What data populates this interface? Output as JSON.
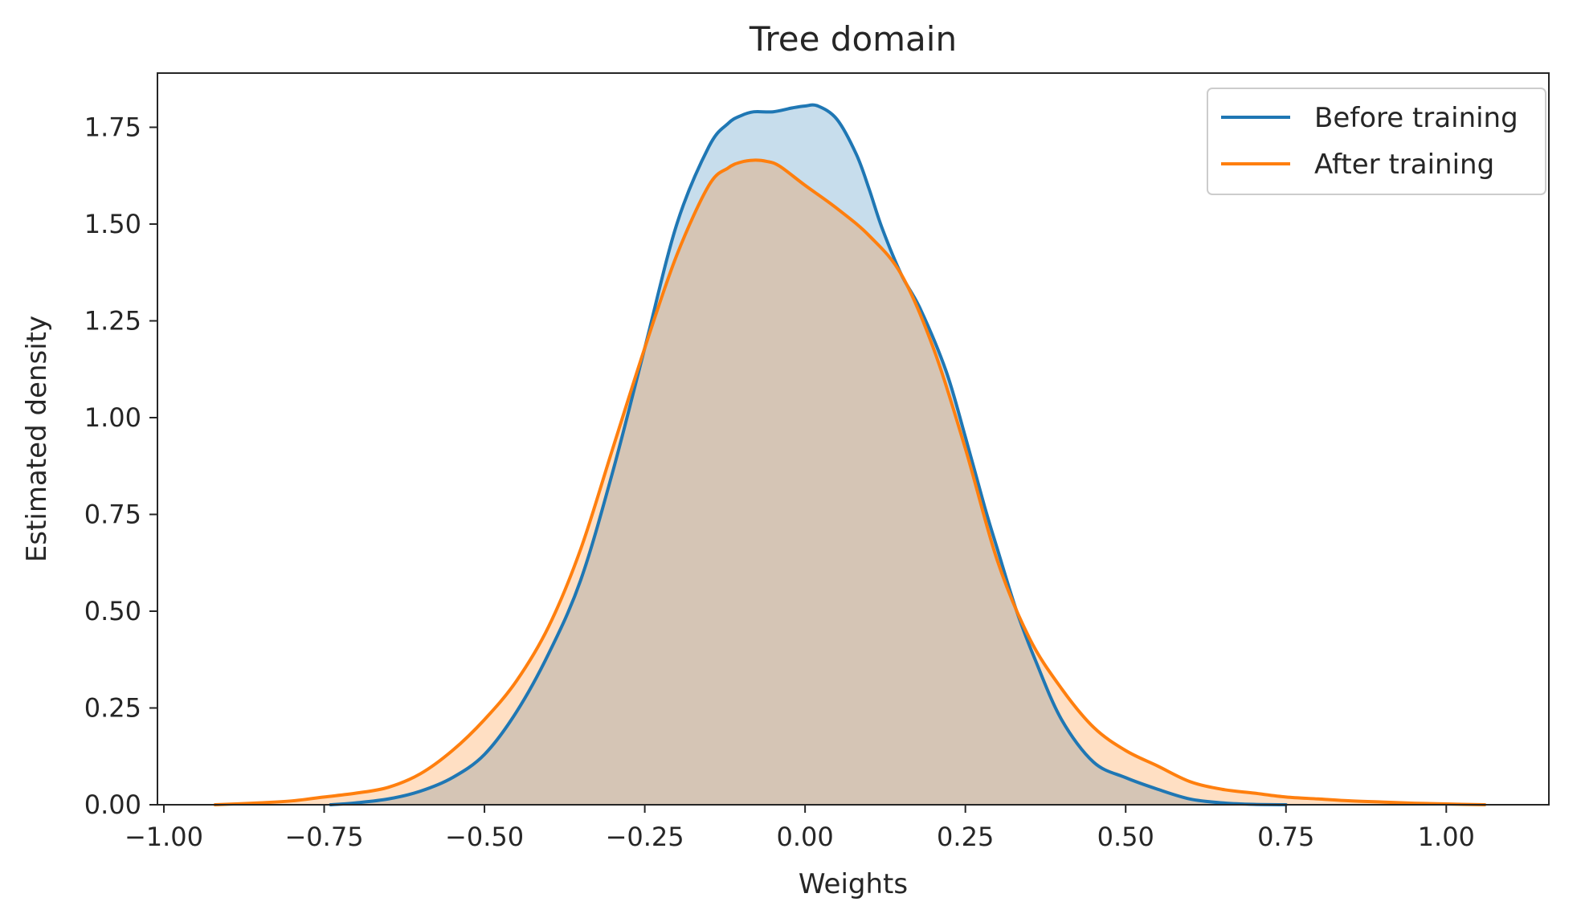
{
  "chart_data": {
    "type": "area",
    "title": "Tree domain",
    "xlabel": "Weights",
    "ylabel": "Estimated density",
    "xlim": [
      -1.01,
      1.16
    ],
    "ylim": [
      0,
      1.89
    ],
    "xticks": [
      -1.0,
      -0.75,
      -0.5,
      -0.25,
      0.0,
      0.25,
      0.5,
      0.75,
      1.0
    ],
    "xtick_labels": [
      "−1.00",
      "−0.75",
      "−0.50",
      "−0.25",
      "0.00",
      "0.25",
      "0.50",
      "0.75",
      "1.00"
    ],
    "yticks": [
      0,
      0.25,
      0.5,
      0.75,
      1.0,
      1.25,
      1.5,
      1.75
    ],
    "ytick_labels": [
      "0.00",
      "0.25",
      "0.50",
      "0.75",
      "1.00",
      "1.25",
      "1.50",
      "1.75"
    ],
    "grid": false,
    "legend_position": "top-right",
    "series": [
      {
        "name": "Before training",
        "color": "#1f77b4",
        "fill": "#c6dced",
        "x": [
          -0.74,
          -0.7,
          -0.65,
          -0.6,
          -0.55,
          -0.5,
          -0.45,
          -0.4,
          -0.35,
          -0.3,
          -0.25,
          -0.2,
          -0.15,
          -0.12,
          -0.1,
          -0.08,
          -0.05,
          -0.02,
          0.0,
          0.02,
          0.05,
          0.08,
          0.1,
          0.12,
          0.15,
          0.18,
          0.22,
          0.25,
          0.28,
          0.3,
          0.33,
          0.36,
          0.4,
          0.45,
          0.5,
          0.55,
          0.6,
          0.65,
          0.7,
          0.75
        ],
        "y": [
          0.0,
          0.005,
          0.015,
          0.035,
          0.07,
          0.13,
          0.24,
          0.39,
          0.58,
          0.86,
          1.18,
          1.5,
          1.7,
          1.76,
          1.78,
          1.79,
          1.79,
          1.8,
          1.805,
          1.805,
          1.77,
          1.68,
          1.59,
          1.49,
          1.37,
          1.28,
          1.12,
          0.95,
          0.77,
          0.66,
          0.5,
          0.37,
          0.22,
          0.11,
          0.07,
          0.04,
          0.015,
          0.005,
          0.001,
          0.0
        ]
      },
      {
        "name": "After training",
        "color": "#ff7f0e",
        "fill": "#ffdab9",
        "x": [
          -0.92,
          -0.85,
          -0.8,
          -0.75,
          -0.7,
          -0.65,
          -0.6,
          -0.55,
          -0.5,
          -0.45,
          -0.4,
          -0.35,
          -0.3,
          -0.25,
          -0.2,
          -0.15,
          -0.12,
          -0.1,
          -0.08,
          -0.06,
          -0.04,
          0.0,
          0.05,
          0.1,
          0.15,
          0.2,
          0.25,
          0.3,
          0.35,
          0.4,
          0.45,
          0.5,
          0.55,
          0.6,
          0.65,
          0.7,
          0.75,
          0.8,
          0.85,
          0.9,
          0.95,
          1.0,
          1.06
        ],
        "y": [
          0.0,
          0.005,
          0.01,
          0.02,
          0.03,
          0.045,
          0.08,
          0.14,
          0.22,
          0.32,
          0.46,
          0.66,
          0.92,
          1.18,
          1.42,
          1.6,
          1.645,
          1.66,
          1.665,
          1.662,
          1.65,
          1.6,
          1.54,
          1.47,
          1.37,
          1.18,
          0.92,
          0.63,
          0.43,
          0.3,
          0.2,
          0.14,
          0.1,
          0.06,
          0.04,
          0.03,
          0.02,
          0.015,
          0.01,
          0.007,
          0.004,
          0.002,
          0.0
        ]
      }
    ]
  }
}
